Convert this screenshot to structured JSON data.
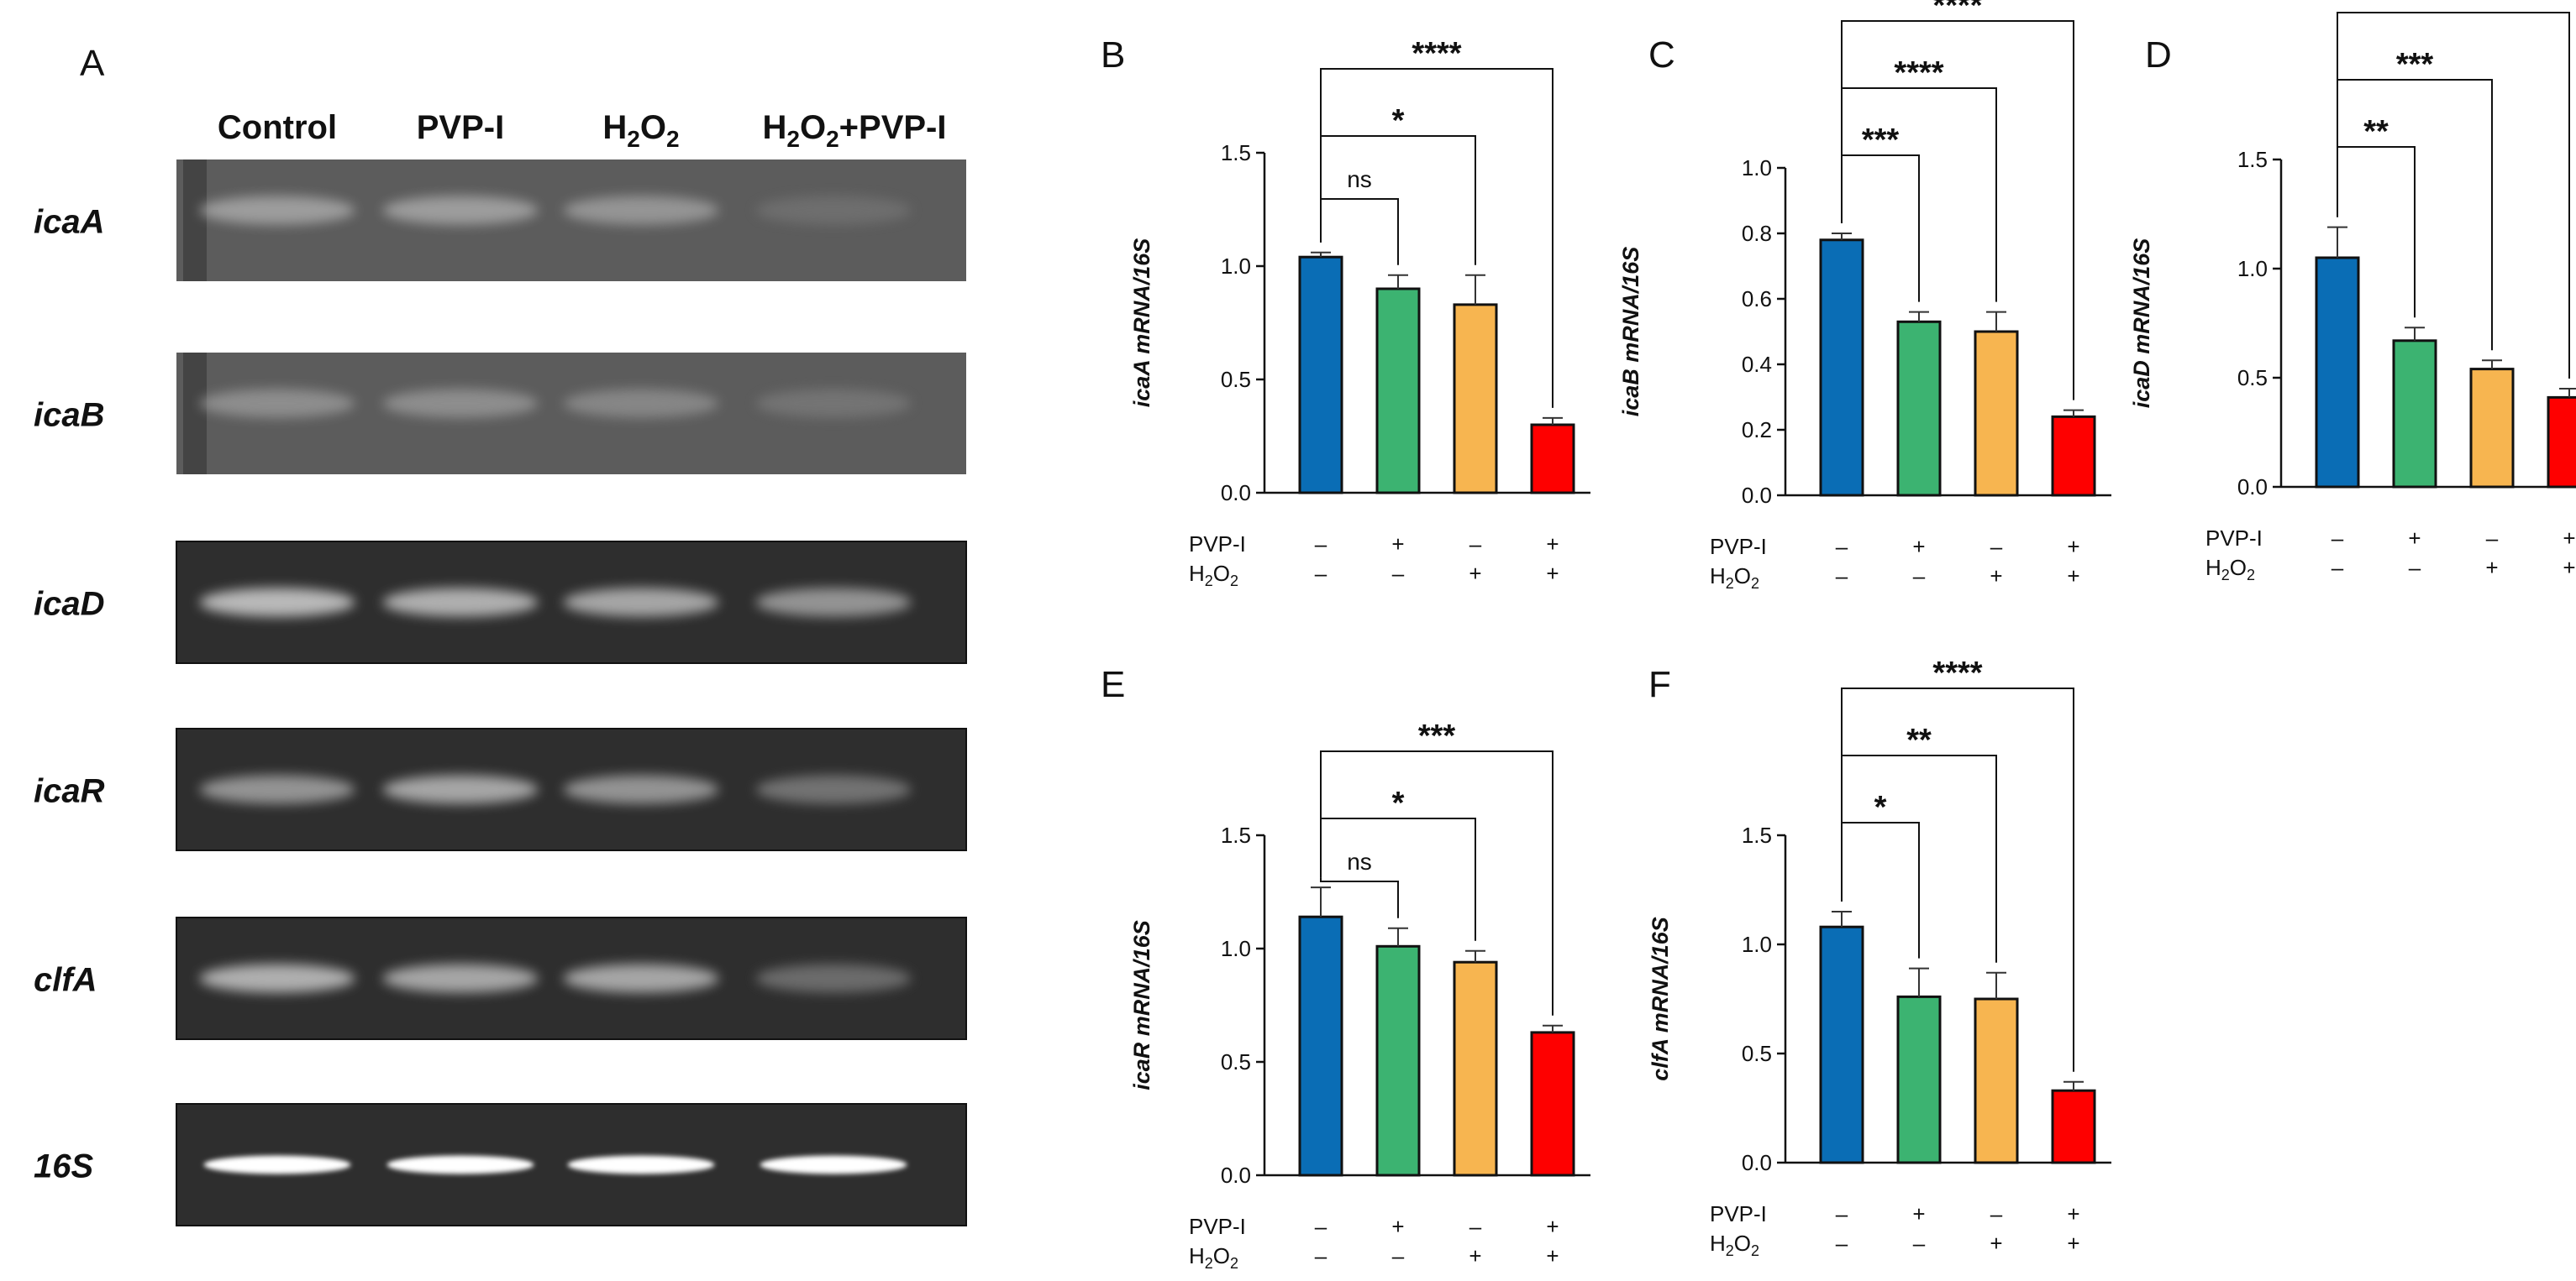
{
  "panel_letters": {
    "A": "A",
    "B": "B",
    "C": "C",
    "D": "D",
    "E": "E",
    "F": "F"
  },
  "gel": {
    "lanes": [
      "Control",
      "PVP-I",
      "H2O2",
      "H2O2+PVP-I"
    ],
    "lane_labels": {
      "control": "Control",
      "pvp": "PVP-I",
      "h2o2_base": "H",
      "h2o2_sub": "2",
      "h2o2_o": "O",
      "h2o2_sub2": "2",
      "combo_h": "H",
      "combo_sub": "2",
      "combo_o": "O",
      "combo_sub2": "2",
      "combo_rest": "+PVP-I"
    },
    "rows": [
      {
        "gene": "icaA",
        "band_intensity": [
          0.55,
          0.55,
          0.5,
          0.2
        ]
      },
      {
        "gene": "icaB",
        "band_intensity": [
          0.45,
          0.45,
          0.4,
          0.25
        ]
      },
      {
        "gene": "icaD",
        "band_intensity": [
          0.75,
          0.7,
          0.65,
          0.55
        ]
      },
      {
        "gene": "icaR",
        "band_intensity": [
          0.55,
          0.65,
          0.55,
          0.35
        ]
      },
      {
        "gene": "clfA",
        "band_intensity": [
          0.7,
          0.65,
          0.65,
          0.3
        ]
      },
      {
        "gene": "16S",
        "band_intensity": [
          1.0,
          1.0,
          1.0,
          1.0
        ]
      }
    ]
  },
  "conditions": {
    "pvp_label": "PVP-I",
    "h2o2_label": "H2O2",
    "pvp_signs": [
      "–",
      "+",
      "–",
      "+"
    ],
    "h2o2_signs": [
      "–",
      "–",
      "+",
      "+"
    ]
  },
  "colors": {
    "control": "#0a6db5",
    "pvp": "#3cb371",
    "h2o2": "#f7b550",
    "combo": "#fe0000"
  },
  "chart_data": [
    {
      "panel": "B",
      "type": "bar",
      "ylabel": "icaA mRNA/16S",
      "ylim": [
        0,
        1.5
      ],
      "yticks": [
        "0.0",
        "0.5",
        "1.0",
        "1.5"
      ],
      "categories": [
        "Control",
        "PVP-I",
        "H2O2",
        "H2O2+PVP-I"
      ],
      "values": [
        1.04,
        0.9,
        0.83,
        0.3
      ],
      "errors": [
        0.02,
        0.06,
        0.13,
        0.03
      ],
      "significance": [
        "ns",
        "*",
        "****"
      ]
    },
    {
      "panel": "C",
      "type": "bar",
      "ylabel": "icaB mRNA/16S",
      "ylim": [
        0,
        1.0
      ],
      "yticks": [
        "0.0",
        "0.2",
        "0.4",
        "0.6",
        "0.8",
        "1.0"
      ],
      "categories": [
        "Control",
        "PVP-I",
        "H2O2",
        "H2O2+PVP-I"
      ],
      "values": [
        0.78,
        0.53,
        0.5,
        0.24
      ],
      "errors": [
        0.02,
        0.03,
        0.06,
        0.02
      ],
      "significance": [
        "***",
        "****",
        "****"
      ]
    },
    {
      "panel": "D",
      "type": "bar",
      "ylabel": "icaD mRNA/16S",
      "ylim": [
        0,
        1.5
      ],
      "yticks": [
        "0.0",
        "0.5",
        "1.0",
        "1.5"
      ],
      "categories": [
        "Control",
        "PVP-I",
        "H2O2",
        "H2O2+PVP-I"
      ],
      "values": [
        1.05,
        0.67,
        0.54,
        0.41
      ],
      "errors": [
        0.14,
        0.06,
        0.04,
        0.04
      ],
      "significance": [
        "**",
        "***",
        "****"
      ]
    },
    {
      "panel": "E",
      "type": "bar",
      "ylabel": "icaR mRNA/16S",
      "ylim": [
        0,
        1.5
      ],
      "yticks": [
        "0.0",
        "0.5",
        "1.0",
        "1.5"
      ],
      "categories": [
        "Control",
        "PVP-I",
        "H2O2",
        "H2O2+PVP-I"
      ],
      "values": [
        1.14,
        1.01,
        0.94,
        0.63
      ],
      "errors": [
        0.13,
        0.08,
        0.05,
        0.03
      ],
      "significance": [
        "ns",
        "*",
        "***"
      ]
    },
    {
      "panel": "F",
      "type": "bar",
      "ylabel": "clfA mRNA/16S",
      "ylim": [
        0,
        1.5
      ],
      "yticks": [
        "0.0",
        "0.5",
        "1.0",
        "1.5"
      ],
      "categories": [
        "Control",
        "PVP-I",
        "H2O2",
        "H2O2+PVP-I"
      ],
      "values": [
        1.08,
        0.76,
        0.75,
        0.33
      ],
      "errors": [
        0.07,
        0.13,
        0.12,
        0.04
      ],
      "significance": [
        "*",
        "**",
        "****"
      ]
    }
  ]
}
